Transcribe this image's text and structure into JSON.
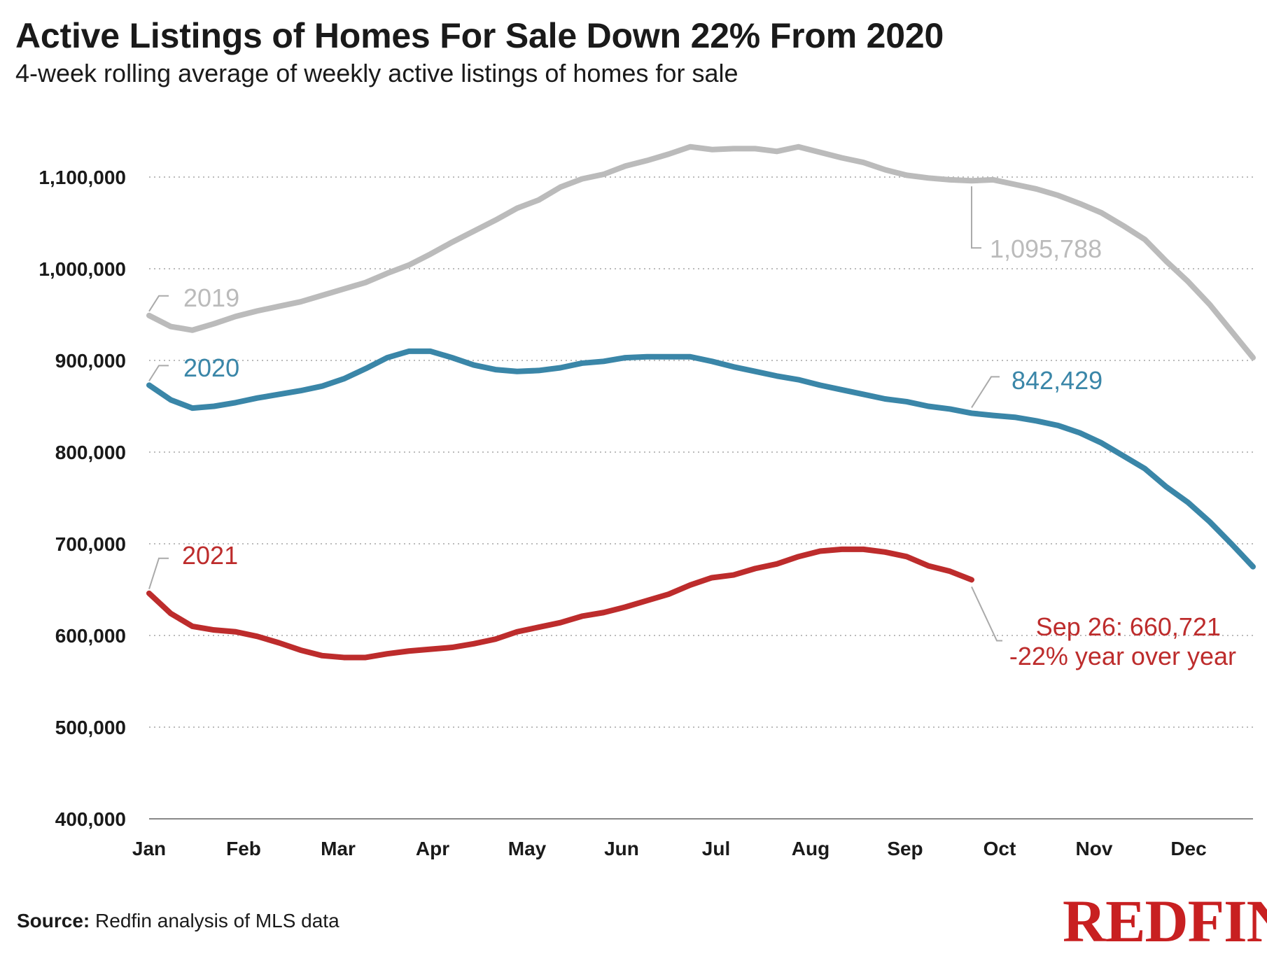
{
  "header": {
    "title": "Active Listings of Homes For Sale Down 22% From 2020",
    "subtitle": "4-week rolling average of weekly active listings of homes for sale"
  },
  "footer": {
    "source_label": "Source:",
    "source_text": " Redfin analysis of MLS data",
    "logo_text": "REDFIN"
  },
  "chart_data": {
    "type": "line",
    "title": "Active Listings of Homes For Sale Down 22% From 2020",
    "subtitle": "4-week rolling average of weekly active listings of homes for sale",
    "xlabel": "",
    "ylabel": "",
    "ylim": [
      400000,
      1100000
    ],
    "yticks": [
      400000,
      500000,
      600000,
      700000,
      800000,
      900000,
      1000000,
      1100000
    ],
    "ytick_labels": [
      "400,000",
      "500,000",
      "600,000",
      "700,000",
      "800,000",
      "900,000",
      "1,000,000",
      "1,100,000"
    ],
    "x_categories": [
      "Jan",
      "Feb",
      "Mar",
      "Apr",
      "May",
      "Jun",
      "Jul",
      "Aug",
      "Sep",
      "Oct",
      "Nov",
      "Dec"
    ],
    "x_unit": "week of year",
    "x_range": [
      1,
      52
    ],
    "grid": true,
    "colors": {
      "2019": "#bbbbbb",
      "2020": "#3a86a8",
      "2021": "#bd2c2c",
      "logo": "#c82021"
    },
    "series": [
      {
        "name": "2019",
        "x": [
          1,
          2,
          3,
          4,
          5,
          6,
          7,
          8,
          9,
          10,
          11,
          12,
          13,
          14,
          15,
          16,
          17,
          18,
          19,
          20,
          21,
          22,
          23,
          24,
          25,
          26,
          27,
          28,
          29,
          30,
          31,
          32,
          33,
          34,
          35,
          36,
          37,
          38,
          39,
          40,
          41,
          42,
          43,
          44,
          45,
          46,
          47,
          48,
          49,
          50,
          51,
          52
        ],
        "values": [
          949000,
          937000,
          933000,
          940000,
          948000,
          954000,
          959000,
          964000,
          971000,
          978000,
          985000,
          995000,
          1004000,
          1016000,
          1029000,
          1041000,
          1053000,
          1066000,
          1075000,
          1089000,
          1098000,
          1103000,
          1112000,
          1118000,
          1125000,
          1133000,
          1130000,
          1131000,
          1131000,
          1128000,
          1133000,
          1127000,
          1121000,
          1116000,
          1108000,
          1102000,
          1099000,
          1097000,
          1096000,
          1097000,
          1092000,
          1087000,
          1080000,
          1071000,
          1061000,
          1047000,
          1032000,
          1008000,
          986000,
          961000,
          932000,
          903000
        ],
        "end_label": "1,095,788",
        "label": "2019"
      },
      {
        "name": "2020",
        "x": [
          1,
          2,
          3,
          4,
          5,
          6,
          7,
          8,
          9,
          10,
          11,
          12,
          13,
          14,
          15,
          16,
          17,
          18,
          19,
          20,
          21,
          22,
          23,
          24,
          25,
          26,
          27,
          28,
          29,
          30,
          31,
          32,
          33,
          34,
          35,
          36,
          37,
          38,
          39,
          40,
          41,
          42,
          43,
          44,
          45,
          46,
          47,
          48,
          49,
          50,
          51,
          52
        ],
        "values": [
          873000,
          857000,
          848000,
          850000,
          854000,
          859000,
          863000,
          867000,
          872000,
          880000,
          891000,
          903000,
          910000,
          910000,
          903000,
          895000,
          890000,
          888000,
          889000,
          892000,
          897000,
          899000,
          903000,
          904000,
          904000,
          904000,
          899000,
          893000,
          888000,
          883000,
          879000,
          873000,
          868000,
          863000,
          858000,
          855000,
          850000,
          847000,
          842429,
          840000,
          838000,
          834000,
          829000,
          821000,
          810000,
          796000,
          782000,
          762000,
          745000,
          724000,
          700000,
          675000
        ],
        "end_label": "842,429",
        "label": "2020"
      },
      {
        "name": "2021",
        "x": [
          1,
          2,
          3,
          4,
          5,
          6,
          7,
          8,
          9,
          10,
          11,
          12,
          13,
          14,
          15,
          16,
          17,
          18,
          19,
          20,
          21,
          22,
          23,
          24,
          25,
          26,
          27,
          28,
          29,
          30,
          31,
          32,
          33,
          34,
          35,
          36,
          37,
          38,
          39
        ],
        "values": [
          646000,
          624000,
          610000,
          606000,
          604000,
          599000,
          592000,
          584000,
          578000,
          576000,
          576000,
          580000,
          583000,
          585000,
          587000,
          591000,
          596000,
          604000,
          609000,
          614000,
          621000,
          625000,
          631000,
          638000,
          645000,
          655000,
          663000,
          666000,
          673000,
          678000,
          686000,
          692000,
          694000,
          694000,
          691000,
          686000,
          676000,
          670000,
          660721
        ],
        "end_label": "Sep 26: 660,721",
        "end_note": "-22% year over year",
        "label": "2021"
      }
    ]
  }
}
